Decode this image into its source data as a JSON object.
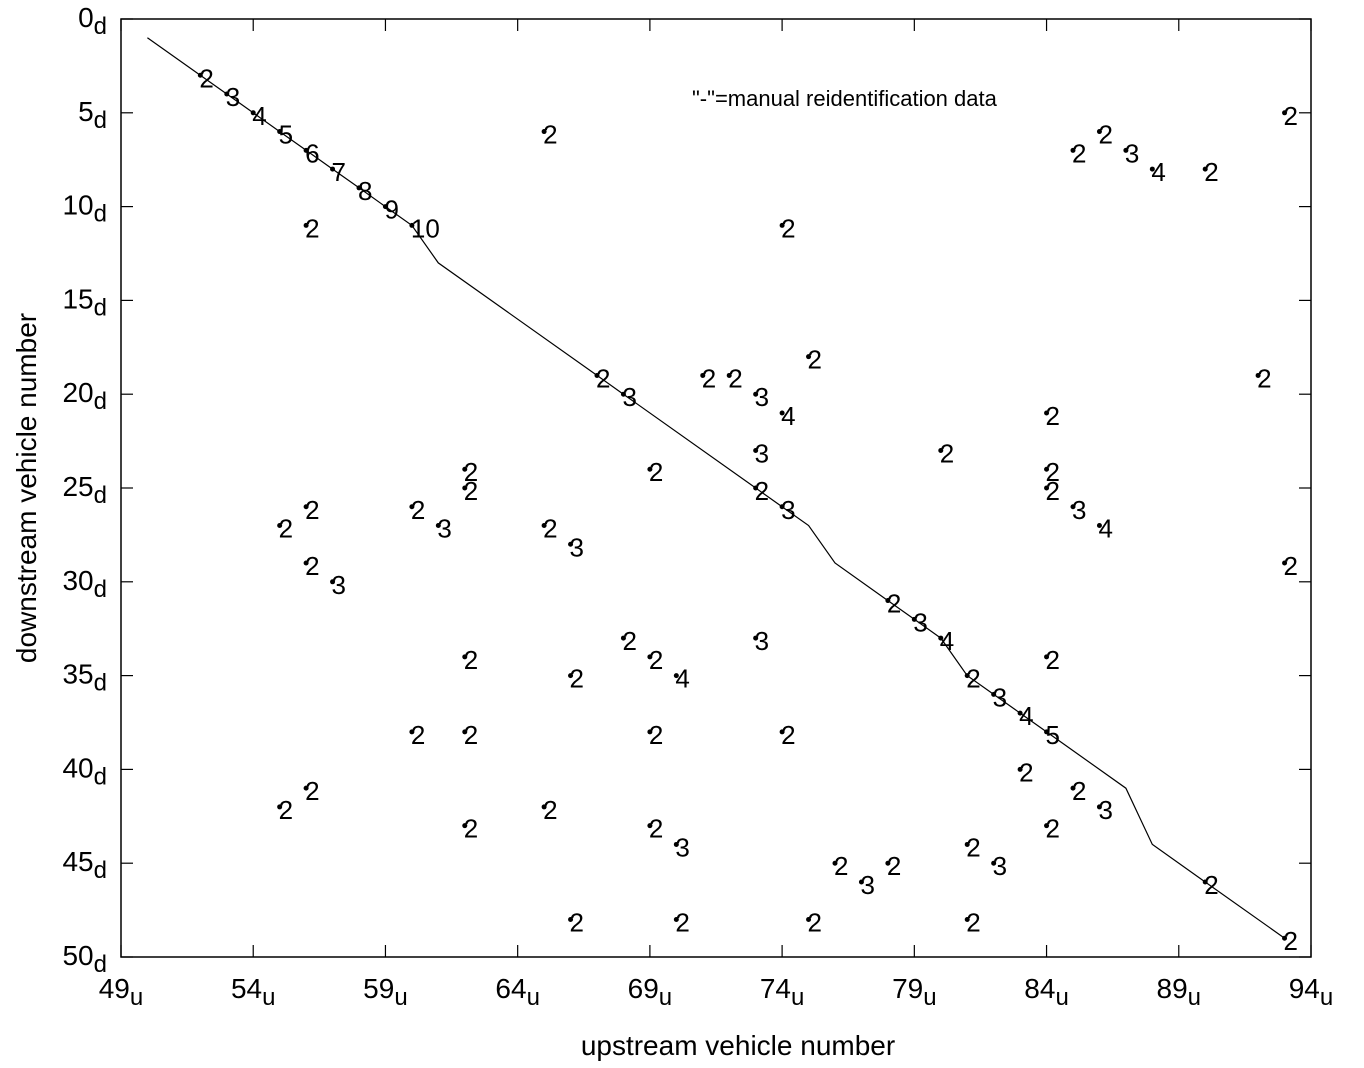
{
  "chart_data": {
    "type": "scatter",
    "title": "",
    "xlabel": "upstream vehicle number",
    "ylabel": "downstream vehicle number",
    "xlim": [
      49,
      94
    ],
    "ylim": [
      0,
      50
    ],
    "y_inverted": true,
    "grid": false,
    "x_ticks": [
      49,
      54,
      59,
      64,
      69,
      74,
      79,
      84,
      89,
      94
    ],
    "y_ticks": [
      0,
      5,
      10,
      15,
      20,
      25,
      30,
      35,
      40,
      45,
      50
    ],
    "x_tick_suffix": "u",
    "y_tick_suffix": "d",
    "annotation": "\"-\"=manual reidentification data",
    "line": {
      "name": "manual reidentification data",
      "points": [
        [
          50,
          1
        ],
        [
          52,
          3
        ],
        [
          53,
          4
        ],
        [
          54,
          5
        ],
        [
          55,
          6
        ],
        [
          56,
          7
        ],
        [
          57,
          8
        ],
        [
          58,
          9
        ],
        [
          59,
          10
        ],
        [
          60,
          11
        ],
        [
          61,
          13
        ],
        [
          67,
          19
        ],
        [
          68,
          20
        ],
        [
          73,
          25
        ],
        [
          74,
          26
        ],
        [
          75,
          27
        ],
        [
          76,
          29
        ],
        [
          78,
          31
        ],
        [
          79,
          32
        ],
        [
          80,
          33
        ],
        [
          81,
          35
        ],
        [
          82,
          36
        ],
        [
          83,
          37
        ],
        [
          84,
          38
        ],
        [
          85,
          39
        ],
        [
          86,
          40
        ],
        [
          87,
          41
        ],
        [
          88,
          44
        ],
        [
          90,
          46
        ],
        [
          93,
          49
        ]
      ]
    },
    "points": [
      {
        "x": 52,
        "y": 3,
        "label": "2"
      },
      {
        "x": 53,
        "y": 4,
        "label": "3"
      },
      {
        "x": 54,
        "y": 5,
        "label": "4"
      },
      {
        "x": 55,
        "y": 6,
        "label": "5"
      },
      {
        "x": 56,
        "y": 7,
        "label": "6"
      },
      {
        "x": 57,
        "y": 8,
        "label": "7"
      },
      {
        "x": 58,
        "y": 9,
        "label": "8"
      },
      {
        "x": 59,
        "y": 10,
        "label": "9"
      },
      {
        "x": 60,
        "y": 11,
        "label": "10"
      },
      {
        "x": 56,
        "y": 11,
        "label": "2"
      },
      {
        "x": 65,
        "y": 6,
        "label": "2"
      },
      {
        "x": 74,
        "y": 11,
        "label": "2"
      },
      {
        "x": 85,
        "y": 7,
        "label": "2"
      },
      {
        "x": 86,
        "y": 6,
        "label": "2"
      },
      {
        "x": 87,
        "y": 7,
        "label": "3"
      },
      {
        "x": 88,
        "y": 8,
        "label": "4"
      },
      {
        "x": 90,
        "y": 8,
        "label": "2"
      },
      {
        "x": 93,
        "y": 5,
        "label": "2"
      },
      {
        "x": 67,
        "y": 19,
        "label": "2"
      },
      {
        "x": 68,
        "y": 20,
        "label": "3"
      },
      {
        "x": 71,
        "y": 19,
        "label": "2"
      },
      {
        "x": 72,
        "y": 19,
        "label": "2"
      },
      {
        "x": 73,
        "y": 20,
        "label": "3"
      },
      {
        "x": 74,
        "y": 21,
        "label": "4"
      },
      {
        "x": 75,
        "y": 18,
        "label": "2"
      },
      {
        "x": 92,
        "y": 19,
        "label": "2"
      },
      {
        "x": 84,
        "y": 21,
        "label": "2"
      },
      {
        "x": 73,
        "y": 23,
        "label": "3"
      },
      {
        "x": 80,
        "y": 23,
        "label": "2"
      },
      {
        "x": 69,
        "y": 24,
        "label": "2"
      },
      {
        "x": 62,
        "y": 24,
        "label": "2"
      },
      {
        "x": 62,
        "y": 25,
        "label": "2"
      },
      {
        "x": 73,
        "y": 25,
        "label": "2"
      },
      {
        "x": 74,
        "y": 26,
        "label": "3"
      },
      {
        "x": 84,
        "y": 24,
        "label": "2"
      },
      {
        "x": 84,
        "y": 25,
        "label": "2"
      },
      {
        "x": 85,
        "y": 26,
        "label": "3"
      },
      {
        "x": 86,
        "y": 27,
        "label": "4"
      },
      {
        "x": 55,
        "y": 27,
        "label": "2"
      },
      {
        "x": 56,
        "y": 26,
        "label": "2"
      },
      {
        "x": 60,
        "y": 26,
        "label": "2"
      },
      {
        "x": 61,
        "y": 27,
        "label": "3"
      },
      {
        "x": 65,
        "y": 27,
        "label": "2"
      },
      {
        "x": 66,
        "y": 28,
        "label": "3"
      },
      {
        "x": 56,
        "y": 29,
        "label": "2"
      },
      {
        "x": 57,
        "y": 30,
        "label": "3"
      },
      {
        "x": 93,
        "y": 29,
        "label": "2"
      },
      {
        "x": 78,
        "y": 31,
        "label": "2"
      },
      {
        "x": 79,
        "y": 32,
        "label": "3"
      },
      {
        "x": 80,
        "y": 33,
        "label": "4"
      },
      {
        "x": 68,
        "y": 33,
        "label": "2"
      },
      {
        "x": 69,
        "y": 34,
        "label": "2"
      },
      {
        "x": 70,
        "y": 35,
        "label": "4"
      },
      {
        "x": 73,
        "y": 33,
        "label": "3"
      },
      {
        "x": 62,
        "y": 34,
        "label": "2"
      },
      {
        "x": 66,
        "y": 35,
        "label": "2"
      },
      {
        "x": 84,
        "y": 34,
        "label": "2"
      },
      {
        "x": 81,
        "y": 35,
        "label": "2"
      },
      {
        "x": 82,
        "y": 36,
        "label": "3"
      },
      {
        "x": 83,
        "y": 37,
        "label": "4"
      },
      {
        "x": 84,
        "y": 38,
        "label": "5"
      },
      {
        "x": 60,
        "y": 38,
        "label": "2"
      },
      {
        "x": 62,
        "y": 38,
        "label": "2"
      },
      {
        "x": 69,
        "y": 38,
        "label": "2"
      },
      {
        "x": 74,
        "y": 38,
        "label": "2"
      },
      {
        "x": 83,
        "y": 40,
        "label": "2"
      },
      {
        "x": 85,
        "y": 41,
        "label": "2"
      },
      {
        "x": 86,
        "y": 42,
        "label": "3"
      },
      {
        "x": 84,
        "y": 43,
        "label": "2"
      },
      {
        "x": 55,
        "y": 42,
        "label": "2"
      },
      {
        "x": 56,
        "y": 41,
        "label": "2"
      },
      {
        "x": 65,
        "y": 42,
        "label": "2"
      },
      {
        "x": 62,
        "y": 43,
        "label": "2"
      },
      {
        "x": 69,
        "y": 43,
        "label": "2"
      },
      {
        "x": 70,
        "y": 44,
        "label": "3"
      },
      {
        "x": 76,
        "y": 45,
        "label": "2"
      },
      {
        "x": 77,
        "y": 46,
        "label": "3"
      },
      {
        "x": 78,
        "y": 45,
        "label": "2"
      },
      {
        "x": 81,
        "y": 44,
        "label": "2"
      },
      {
        "x": 82,
        "y": 45,
        "label": "3"
      },
      {
        "x": 90,
        "y": 46,
        "label": "2"
      },
      {
        "x": 66,
        "y": 48,
        "label": "2"
      },
      {
        "x": 70,
        "y": 48,
        "label": "2"
      },
      {
        "x": 75,
        "y": 48,
        "label": "2"
      },
      {
        "x": 81,
        "y": 48,
        "label": "2"
      },
      {
        "x": 93,
        "y": 49,
        "label": "2"
      }
    ]
  }
}
